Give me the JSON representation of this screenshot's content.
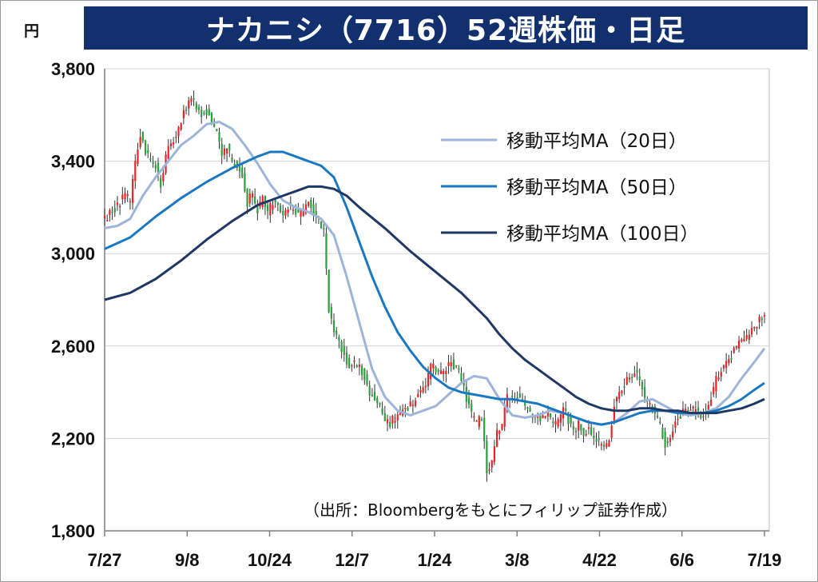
{
  "unit_label": "円",
  "title": "ナカニシ（7716）52週株価・日足",
  "source": "（出所：Bloombergをもとにフィリップ証券作成）",
  "chart_data": {
    "type": "candlestick",
    "title": "ナカニシ（7716）52週株価・日足",
    "ylabel": "円",
    "ylim": [
      1800,
      3800
    ],
    "y_ticks": [
      "3,800",
      "3,400",
      "3,000",
      "2,600",
      "2,200",
      "1,800"
    ],
    "y_tick_values": [
      3800,
      3400,
      3000,
      2600,
      2200,
      1800
    ],
    "x_ticks": [
      "7/27",
      "9/8",
      "10/24",
      "12/7",
      "1/24",
      "3/8",
      "4/22",
      "6/6",
      "7/19"
    ],
    "grid": true,
    "legend_position": "top-right",
    "up_color": "#e8262a",
    "down_color": "#2e9e3f",
    "series": [
      {
        "name": "移動平均MA（20日）",
        "color": "#9db5d8",
        "points": [
          [
            0,
            3110
          ],
          [
            5,
            3120
          ],
          [
            10,
            3150
          ],
          [
            15,
            3250
          ],
          [
            20,
            3330
          ],
          [
            25,
            3400
          ],
          [
            30,
            3470
          ],
          [
            35,
            3510
          ],
          [
            40,
            3560
          ],
          [
            45,
            3570
          ],
          [
            50,
            3540
          ],
          [
            55,
            3470
          ],
          [
            60,
            3390
          ],
          [
            65,
            3300
          ],
          [
            70,
            3230
          ],
          [
            75,
            3200
          ],
          [
            80,
            3180
          ],
          [
            85,
            3150
          ],
          [
            90,
            3080
          ],
          [
            95,
            2900
          ],
          [
            100,
            2700
          ],
          [
            105,
            2500
          ],
          [
            110,
            2380
          ],
          [
            115,
            2320
          ],
          [
            120,
            2300
          ],
          [
            125,
            2320
          ],
          [
            130,
            2340
          ],
          [
            135,
            2390
          ],
          [
            140,
            2440
          ],
          [
            145,
            2470
          ],
          [
            150,
            2460
          ],
          [
            155,
            2370
          ],
          [
            160,
            2300
          ],
          [
            165,
            2290
          ],
          [
            170,
            2300
          ],
          [
            175,
            2320
          ],
          [
            180,
            2310
          ],
          [
            185,
            2290
          ],
          [
            190,
            2270
          ],
          [
            195,
            2260
          ],
          [
            200,
            2270
          ],
          [
            205,
            2310
          ],
          [
            210,
            2360
          ],
          [
            215,
            2370
          ],
          [
            220,
            2340
          ],
          [
            225,
            2310
          ],
          [
            230,
            2300
          ],
          [
            235,
            2310
          ],
          [
            240,
            2330
          ],
          [
            245,
            2380
          ],
          [
            250,
            2460
          ],
          [
            255,
            2530
          ],
          [
            259,
            2590
          ]
        ]
      },
      {
        "name": "移動平均MA（50日）",
        "color": "#1a78c2",
        "points": [
          [
            0,
            3020
          ],
          [
            10,
            3070
          ],
          [
            20,
            3160
          ],
          [
            30,
            3240
          ],
          [
            40,
            3310
          ],
          [
            50,
            3370
          ],
          [
            60,
            3420
          ],
          [
            65,
            3440
          ],
          [
            70,
            3440
          ],
          [
            75,
            3420
          ],
          [
            80,
            3400
          ],
          [
            85,
            3380
          ],
          [
            90,
            3330
          ],
          [
            95,
            3200
          ],
          [
            100,
            3050
          ],
          [
            105,
            2900
          ],
          [
            110,
            2770
          ],
          [
            115,
            2660
          ],
          [
            120,
            2580
          ],
          [
            125,
            2510
          ],
          [
            130,
            2460
          ],
          [
            135,
            2420
          ],
          [
            140,
            2400
          ],
          [
            145,
            2390
          ],
          [
            150,
            2380
          ],
          [
            155,
            2370
          ],
          [
            160,
            2370
          ],
          [
            165,
            2360
          ],
          [
            170,
            2350
          ],
          [
            175,
            2330
          ],
          [
            180,
            2310
          ],
          [
            185,
            2290
          ],
          [
            190,
            2270
          ],
          [
            195,
            2260
          ],
          [
            200,
            2270
          ],
          [
            205,
            2290
          ],
          [
            210,
            2310
          ],
          [
            215,
            2320
          ],
          [
            220,
            2320
          ],
          [
            225,
            2310
          ],
          [
            230,
            2310
          ],
          [
            235,
            2310
          ],
          [
            240,
            2320
          ],
          [
            245,
            2340
          ],
          [
            250,
            2370
          ],
          [
            255,
            2410
          ],
          [
            259,
            2440
          ]
        ]
      },
      {
        "name": "移動平均MA（100日）",
        "color": "#1f3864",
        "points": [
          [
            0,
            2800
          ],
          [
            10,
            2830
          ],
          [
            20,
            2890
          ],
          [
            30,
            2970
          ],
          [
            40,
            3060
          ],
          [
            50,
            3140
          ],
          [
            60,
            3210
          ],
          [
            70,
            3250
          ],
          [
            75,
            3270
          ],
          [
            80,
            3290
          ],
          [
            85,
            3290
          ],
          [
            90,
            3280
          ],
          [
            95,
            3250
          ],
          [
            100,
            3200
          ],
          [
            110,
            3110
          ],
          [
            120,
            3010
          ],
          [
            130,
            2920
          ],
          [
            140,
            2830
          ],
          [
            150,
            2720
          ],
          [
            155,
            2650
          ],
          [
            160,
            2590
          ],
          [
            165,
            2540
          ],
          [
            170,
            2500
          ],
          [
            175,
            2460
          ],
          [
            180,
            2420
          ],
          [
            185,
            2380
          ],
          [
            190,
            2350
          ],
          [
            195,
            2330
          ],
          [
            200,
            2320
          ],
          [
            205,
            2320
          ],
          [
            210,
            2330
          ],
          [
            215,
            2330
          ],
          [
            220,
            2320
          ],
          [
            225,
            2320
          ],
          [
            230,
            2310
          ],
          [
            235,
            2310
          ],
          [
            240,
            2310
          ],
          [
            245,
            2320
          ],
          [
            250,
            2330
          ],
          [
            255,
            2350
          ],
          [
            259,
            2370
          ]
        ]
      }
    ],
    "price_path": [
      [
        0,
        3150
      ],
      [
        4,
        3200
      ],
      [
        8,
        3250
      ],
      [
        10,
        3230
      ],
      [
        12,
        3400
      ],
      [
        14,
        3520
      ],
      [
        16,
        3450
      ],
      [
        18,
        3400
      ],
      [
        20,
        3380
      ],
      [
        22,
        3300
      ],
      [
        24,
        3420
      ],
      [
        26,
        3480
      ],
      [
        28,
        3520
      ],
      [
        30,
        3580
      ],
      [
        32,
        3640
      ],
      [
        34,
        3680
      ],
      [
        36,
        3640
      ],
      [
        38,
        3600
      ],
      [
        40,
        3620
      ],
      [
        42,
        3580
      ],
      [
        44,
        3520
      ],
      [
        46,
        3420
      ],
      [
        48,
        3460
      ],
      [
        50,
        3400
      ],
      [
        52,
        3380
      ],
      [
        54,
        3340
      ],
      [
        56,
        3220
      ],
      [
        58,
        3260
      ],
      [
        60,
        3190
      ],
      [
        62,
        3240
      ],
      [
        64,
        3180
      ],
      [
        66,
        3220
      ],
      [
        68,
        3200
      ],
      [
        70,
        3150
      ],
      [
        72,
        3210
      ],
      [
        74,
        3190
      ],
      [
        76,
        3170
      ],
      [
        78,
        3180
      ],
      [
        80,
        3230
      ],
      [
        82,
        3170
      ],
      [
        84,
        3140
      ],
      [
        86,
        3100
      ],
      [
        88,
        2760
      ],
      [
        90,
        2660
      ],
      [
        92,
        2620
      ],
      [
        94,
        2560
      ],
      [
        96,
        2520
      ],
      [
        98,
        2530
      ],
      [
        100,
        2510
      ],
      [
        102,
        2470
      ],
      [
        104,
        2400
      ],
      [
        106,
        2380
      ],
      [
        108,
        2340
      ],
      [
        110,
        2280
      ],
      [
        112,
        2270
      ],
      [
        114,
        2290
      ],
      [
        116,
        2310
      ],
      [
        118,
        2320
      ],
      [
        120,
        2340
      ],
      [
        122,
        2370
      ],
      [
        124,
        2400
      ],
      [
        126,
        2430
      ],
      [
        128,
        2510
      ],
      [
        130,
        2500
      ],
      [
        132,
        2480
      ],
      [
        134,
        2500
      ],
      [
        136,
        2530
      ],
      [
        138,
        2510
      ],
      [
        140,
        2460
      ],
      [
        142,
        2380
      ],
      [
        144,
        2300
      ],
      [
        146,
        2260
      ],
      [
        148,
        2300
      ],
      [
        150,
        2060
      ],
      [
        152,
        2100
      ],
      [
        154,
        2220
      ],
      [
        156,
        2250
      ],
      [
        158,
        2380
      ],
      [
        160,
        2360
      ],
      [
        162,
        2390
      ],
      [
        164,
        2360
      ],
      [
        166,
        2330
      ],
      [
        168,
        2300
      ],
      [
        170,
        2300
      ],
      [
        172,
        2280
      ],
      [
        174,
        2310
      ],
      [
        176,
        2250
      ],
      [
        178,
        2280
      ],
      [
        180,
        2320
      ],
      [
        182,
        2280
      ],
      [
        184,
        2230
      ],
      [
        186,
        2260
      ],
      [
        188,
        2220
      ],
      [
        190,
        2240
      ],
      [
        192,
        2210
      ],
      [
        194,
        2180
      ],
      [
        196,
        2150
      ],
      [
        198,
        2200
      ],
      [
        200,
        2350
      ],
      [
        202,
        2400
      ],
      [
        204,
        2430
      ],
      [
        206,
        2460
      ],
      [
        208,
        2500
      ],
      [
        210,
        2450
      ],
      [
        212,
        2380
      ],
      [
        214,
        2340
      ],
      [
        216,
        2310
      ],
      [
        218,
        2250
      ],
      [
        220,
        2180
      ],
      [
        222,
        2210
      ],
      [
        224,
        2270
      ],
      [
        226,
        2300
      ],
      [
        228,
        2330
      ],
      [
        230,
        2320
      ],
      [
        232,
        2330
      ],
      [
        234,
        2300
      ],
      [
        236,
        2320
      ],
      [
        238,
        2380
      ],
      [
        240,
        2450
      ],
      [
        242,
        2500
      ],
      [
        244,
        2520
      ],
      [
        246,
        2560
      ],
      [
        248,
        2600
      ],
      [
        250,
        2620
      ],
      [
        252,
        2640
      ],
      [
        254,
        2680
      ],
      [
        256,
        2700
      ],
      [
        258,
        2720
      ],
      [
        259,
        2720
      ]
    ]
  },
  "candle_style": {
    "wick_ratio": 0.4
  }
}
